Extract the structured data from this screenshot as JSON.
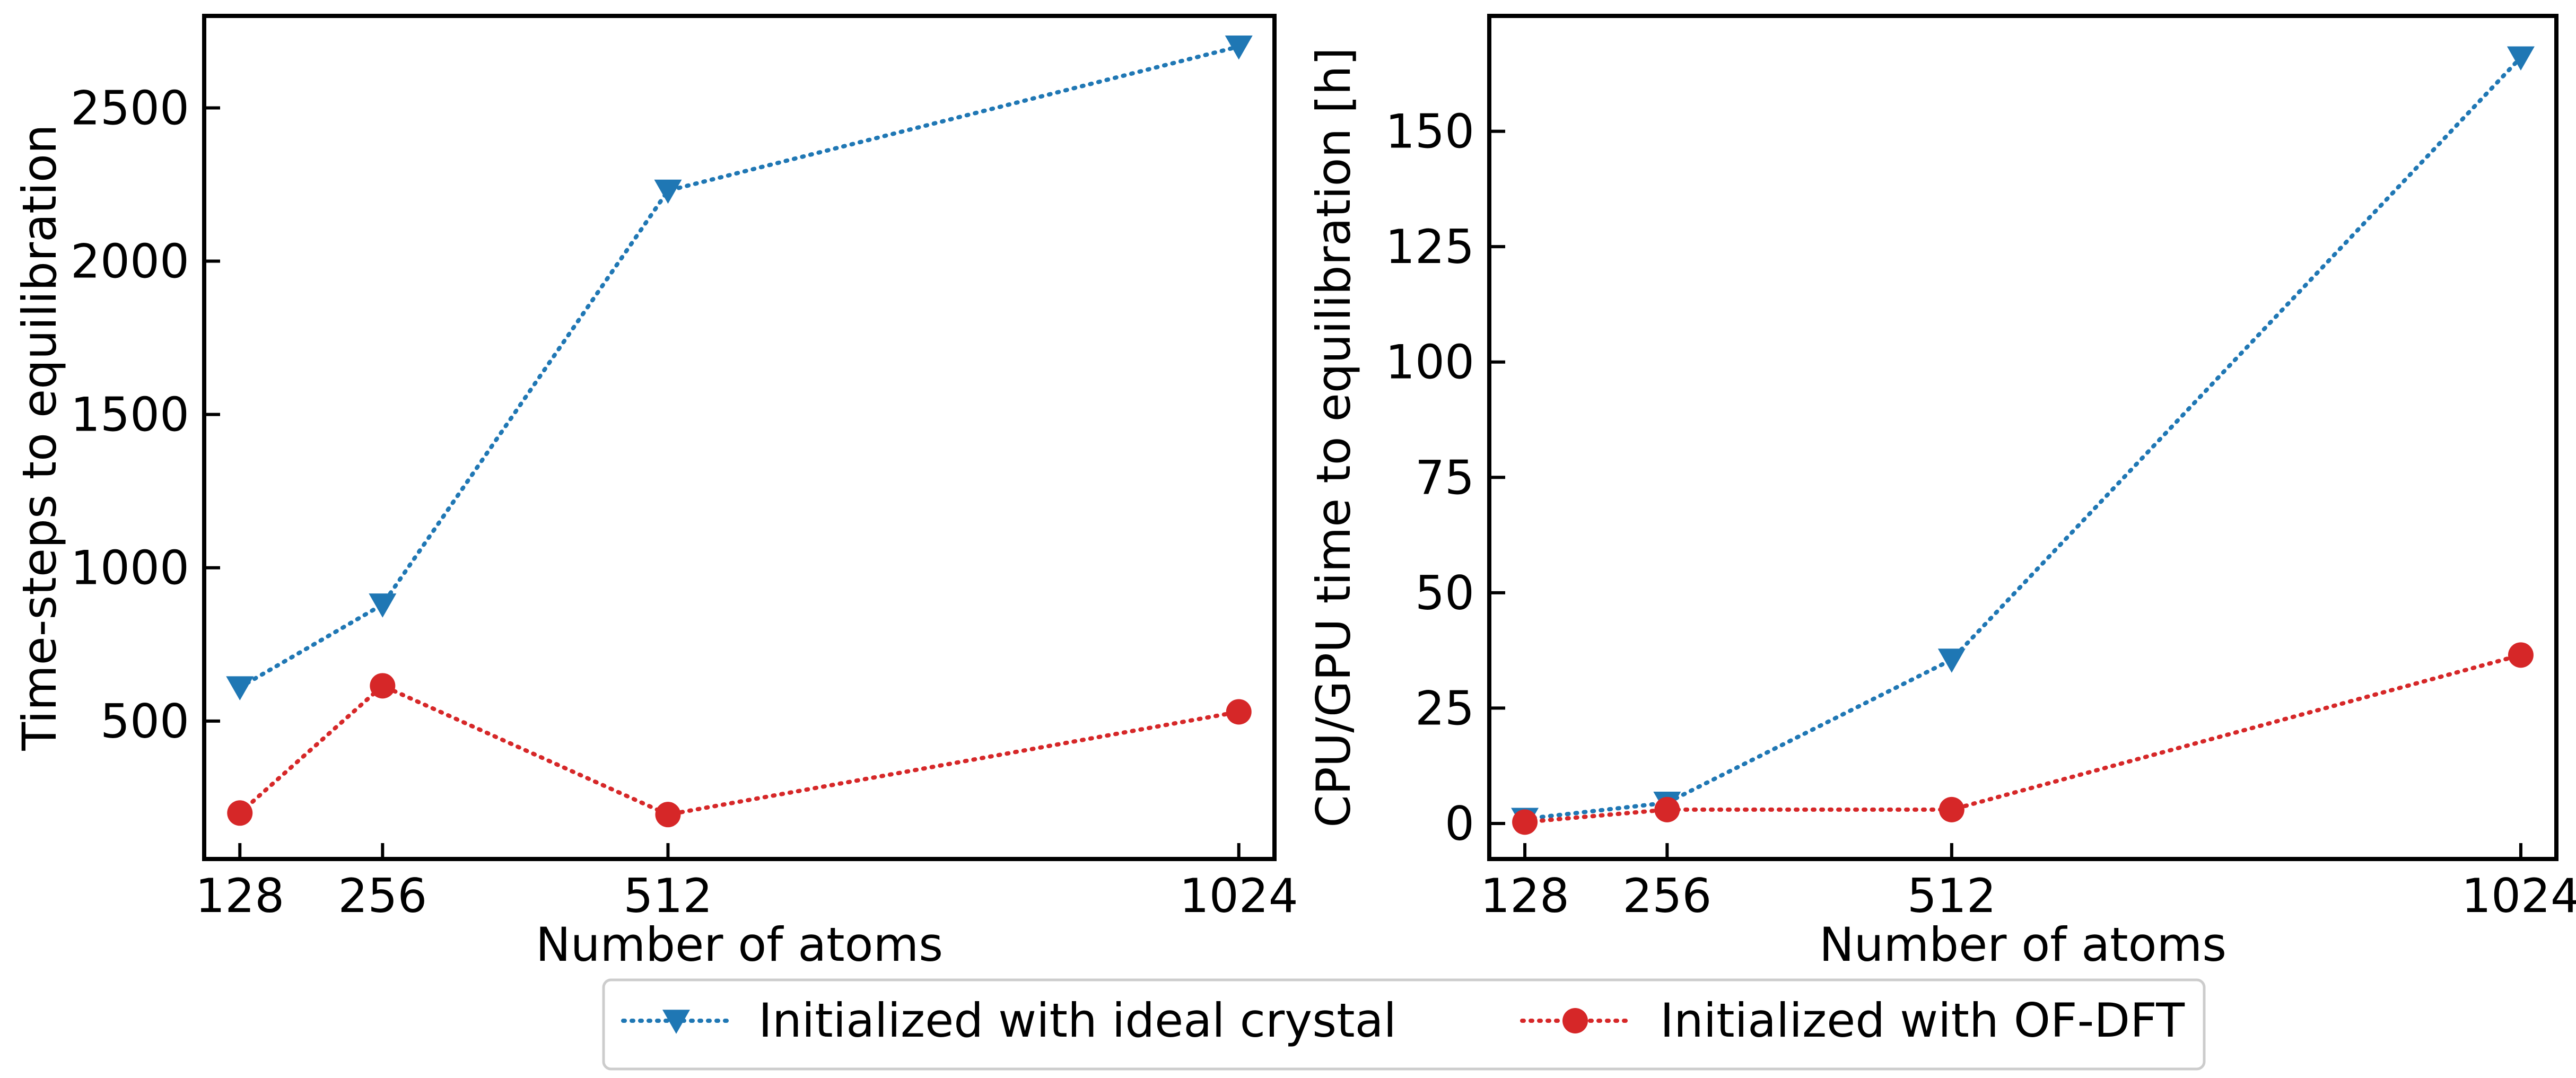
{
  "chart_data": [
    {
      "type": "line",
      "xlabel": "Number of atoms",
      "ylabel": "Time-steps to equilibration",
      "x": [
        128,
        256,
        512,
        1024
      ],
      "xticks": [
        128,
        256,
        512,
        1024
      ],
      "yticks": [
        500,
        1000,
        1500,
        2000,
        2500
      ],
      "ylim": [
        50,
        2800
      ],
      "grid": false,
      "series": [
        {
          "name": "Initialized with ideal crystal",
          "color": "#1f77b4",
          "marker": "triangle-down",
          "linestyle": "dotted",
          "values": [
            610,
            880,
            2230,
            2700
          ]
        },
        {
          "name": "Initialized with OF-DFT",
          "color": "#d62728",
          "marker": "circle",
          "linestyle": "dotted",
          "values": [
            200,
            615,
            195,
            530
          ]
        }
      ]
    },
    {
      "type": "line",
      "xlabel": "Number of atoms",
      "ylabel": "CPU/GPU time to equilibration [h]",
      "x": [
        128,
        256,
        512,
        1024
      ],
      "xticks": [
        128,
        256,
        512,
        1024
      ],
      "yticks": [
        0,
        25,
        50,
        75,
        100,
        125,
        150
      ],
      "ylim": [
        -7.7,
        175
      ],
      "grid": false,
      "series": [
        {
          "name": "Initialized with ideal crystal",
          "color": "#1f77b4",
          "marker": "triangle-down",
          "linestyle": "dotted",
          "values": [
            1,
            4.5,
            35.5,
            166
          ]
        },
        {
          "name": "Initialized with OF-DFT",
          "color": "#d62728",
          "marker": "circle",
          "linestyle": "dotted",
          "values": [
            0.3,
            3,
            3,
            36.5
          ]
        }
      ]
    }
  ],
  "legend": {
    "placement": "bottom-center",
    "items": [
      {
        "label": "Initialized with ideal crystal",
        "color": "#1f77b4",
        "marker": "triangle-down"
      },
      {
        "label": "Initialized with OF-DFT",
        "color": "#d62728",
        "marker": "circle"
      }
    ]
  }
}
